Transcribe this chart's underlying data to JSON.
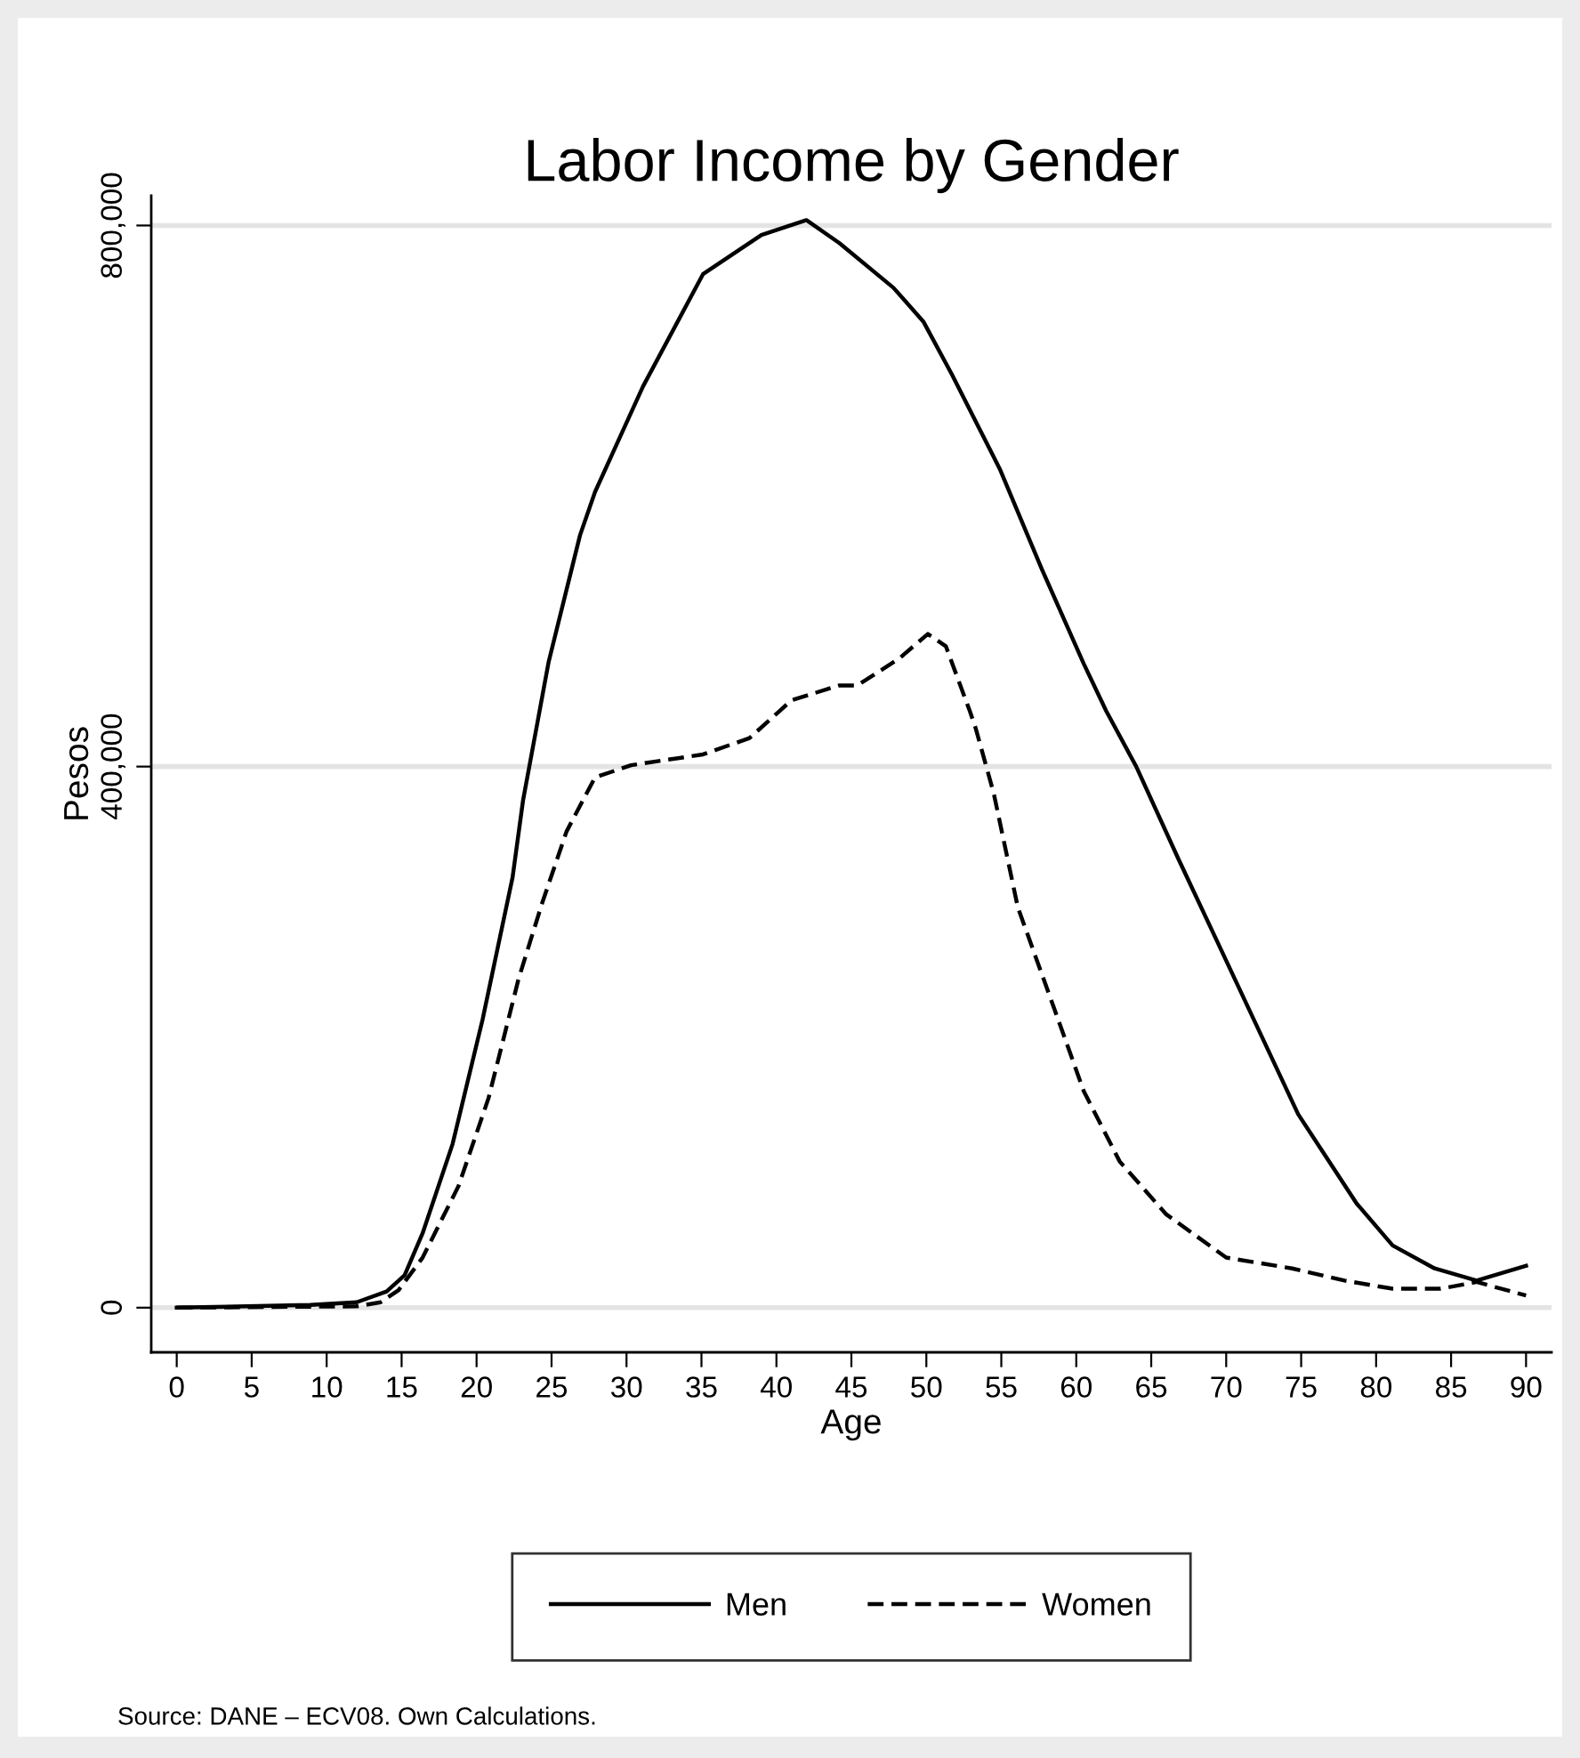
{
  "chart_data": {
    "type": "line",
    "title": "Labor Income by Gender",
    "xlabel": "Age",
    "ylabel": "Pesos",
    "xlim": [
      -1.7,
      91.7
    ],
    "xticks": [
      0,
      5,
      10,
      15,
      20,
      25,
      30,
      35,
      40,
      45,
      50,
      55,
      60,
      65,
      70,
      75,
      80,
      85,
      90
    ],
    "ylim": [
      -33000,
      822000
    ],
    "yticks": [
      {
        "value": 0,
        "label": "0"
      },
      {
        "value": 400000,
        "label": "400,000"
      },
      {
        "value": 800000,
        "label": "800,000"
      }
    ],
    "grid": "y",
    "legend": "bottom",
    "annotations": [
      "Source: DANE – ECV08. Own Calculations."
    ],
    "series": [
      {
        "name": "Men",
        "color": "#000000",
        "line_style": "solid",
        "x": [
          0,
          8.9,
          12,
          14,
          15.2,
          16.4,
          18.4,
          20.4,
          22.4,
          23.1,
          24.2,
          24.8,
          26.9,
          27.9,
          31.1,
          35.1,
          39,
          42,
          44.2,
          47.8,
          49.8,
          51.7,
          54.9,
          57.7,
          60.5,
          62,
          64,
          66.8,
          69.6,
          74.8,
          78.7,
          81.1,
          83.9,
          86.7,
          90
        ],
        "values": [
          0,
          2000,
          4000,
          12000,
          24000,
          55000,
          121000,
          213000,
          318000,
          375000,
          441000,
          477000,
          571000,
          603000,
          681000,
          764000,
          793000,
          804000,
          787000,
          754000,
          729000,
          690000,
          620000,
          546000,
          476000,
          441000,
          400000,
          332000,
          266000,
          143000,
          77000,
          46000,
          29000,
          20000,
          31000
        ]
      },
      {
        "name": "Women",
        "color": "#000000",
        "line_style": "dashed",
        "x": [
          0,
          12,
          13.6,
          14.8,
          16.4,
          18.8,
          20.8,
          22.8,
          24.4,
          26,
          27.9,
          30.3,
          35.1,
          38.2,
          40.2,
          41,
          44.2,
          45.4,
          48.2,
          50.1,
          51.3,
          52.9,
          53.3,
          54.5,
          56.1,
          58.5,
          60.5,
          62.9,
          66,
          70,
          74.4,
          77.9,
          81.1,
          84.3,
          86.7,
          90
        ],
        "values": [
          0,
          1000,
          4000,
          13000,
          37000,
          90000,
          155000,
          243000,
          300000,
          352000,
          392000,
          401000,
          409000,
          421000,
          441000,
          449000,
          460000,
          460000,
          480000,
          498000,
          489000,
          441000,
          428000,
          380000,
          296000,
          222000,
          160000,
          108000,
          69000,
          37000,
          29000,
          20000,
          14000,
          14000,
          19000,
          9000
        ]
      }
    ]
  }
}
